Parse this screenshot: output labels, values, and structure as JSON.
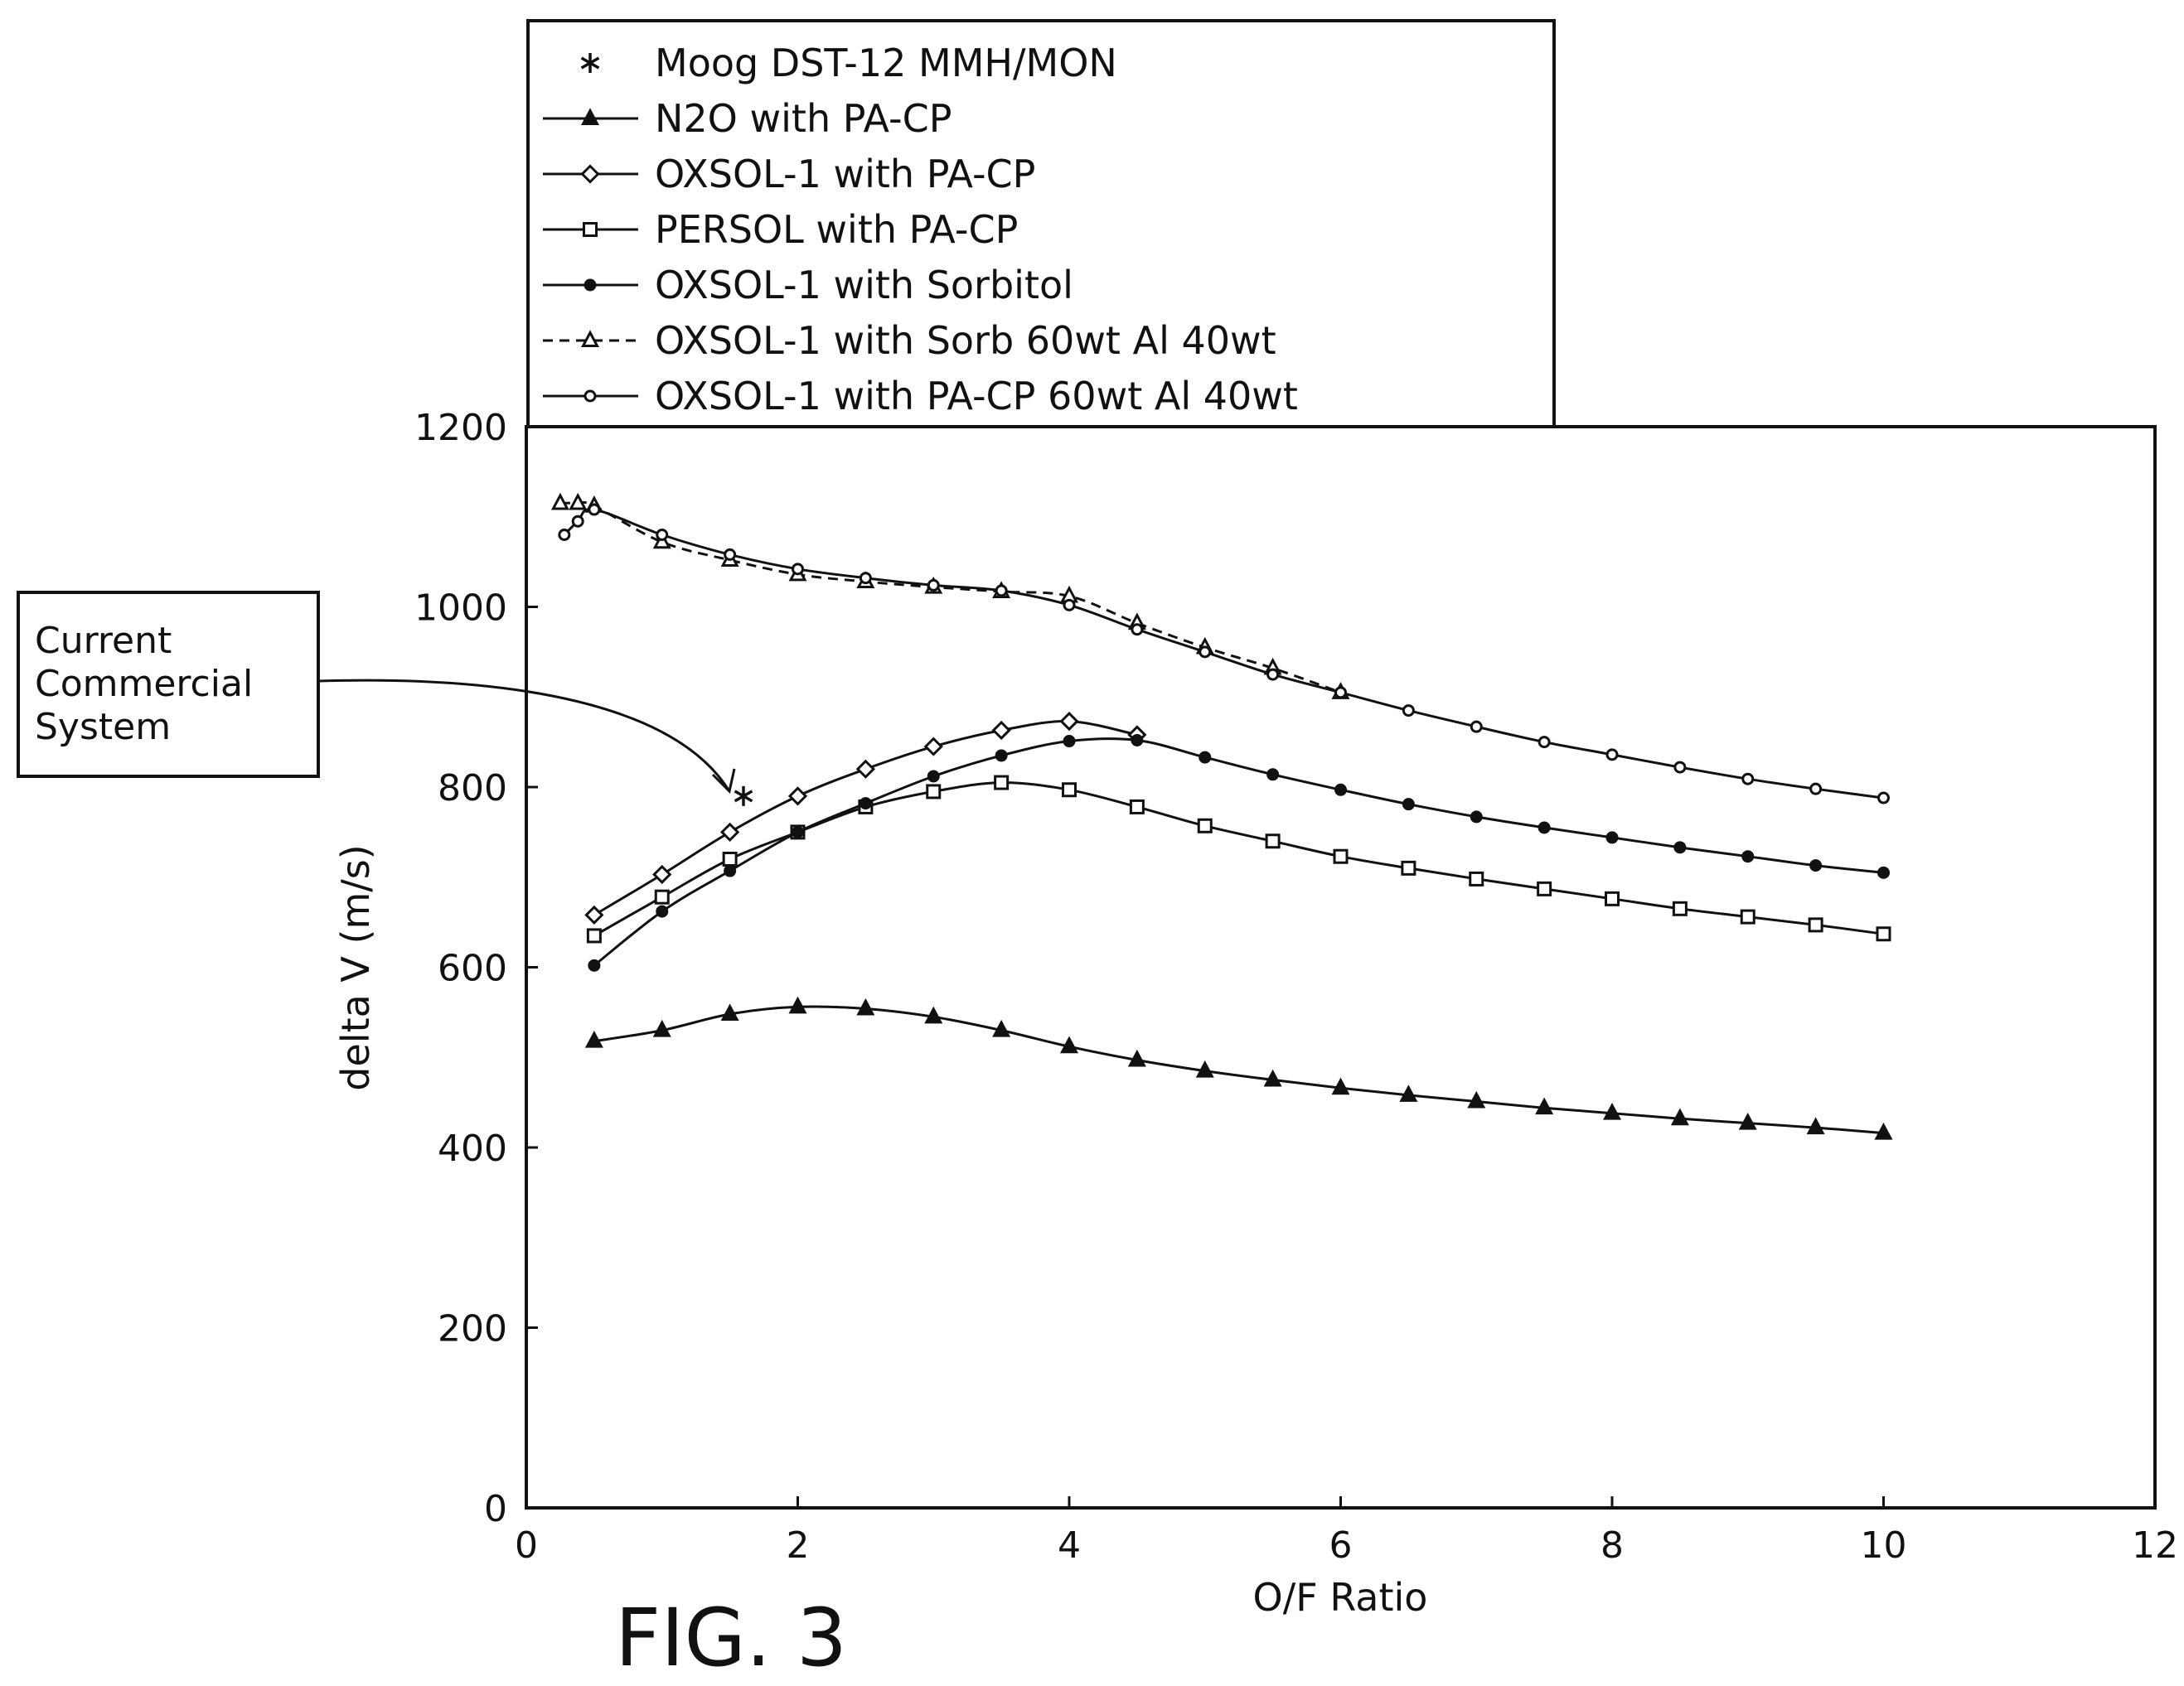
{
  "figure_label": "FIG. 3",
  "callout": {
    "lines": [
      "Current",
      "Commercial",
      "System"
    ]
  },
  "chart_data": {
    "type": "line",
    "xlabel": "O/F Ratio",
    "ylabel": "delta V (m/s)",
    "xlim": [
      0,
      12
    ],
    "ylim": [
      0,
      1200
    ],
    "xticks": [
      0,
      2,
      4,
      6,
      8,
      10,
      12
    ],
    "yticks": [
      0,
      200,
      400,
      600,
      800,
      1000,
      1200
    ],
    "grid": false,
    "legend_position": "top, above plot",
    "series": [
      {
        "name": "Moog DST-12 MMH/MON",
        "marker": "asterisk",
        "line": "none",
        "points": [
          [
            1.6,
            790
          ]
        ]
      },
      {
        "name": "N2O with PA-CP",
        "marker": "triangle-filled",
        "line": "solid",
        "points": [
          [
            0.5,
            518
          ],
          [
            1,
            530
          ],
          [
            1.5,
            548
          ],
          [
            2,
            556
          ],
          [
            2.5,
            554
          ],
          [
            3,
            545
          ],
          [
            3.5,
            530
          ],
          [
            4,
            512
          ],
          [
            4.5,
            497
          ],
          [
            5,
            485
          ],
          [
            5.5,
            475
          ],
          [
            6,
            466
          ],
          [
            6.5,
            458
          ],
          [
            7,
            451
          ],
          [
            7.5,
            444
          ],
          [
            8,
            438
          ],
          [
            8.5,
            432
          ],
          [
            9,
            427
          ],
          [
            9.5,
            422
          ],
          [
            10,
            416
          ]
        ]
      },
      {
        "name": "OXSOL-1 with PA-CP",
        "marker": "diamond-open",
        "line": "solid",
        "points": [
          [
            0.5,
            658
          ],
          [
            1,
            703
          ],
          [
            1.5,
            750
          ],
          [
            2,
            790
          ],
          [
            2.5,
            820
          ],
          [
            3,
            845
          ],
          [
            3.5,
            863
          ],
          [
            4,
            873
          ],
          [
            4.5,
            858
          ]
        ]
      },
      {
        "name": "PERSOL with PA-CP",
        "marker": "square-open",
        "line": "solid",
        "points": [
          [
            0.5,
            635
          ],
          [
            1,
            678
          ],
          [
            1.5,
            720
          ],
          [
            2,
            750
          ],
          [
            2.5,
            778
          ],
          [
            3,
            795
          ],
          [
            3.5,
            805
          ],
          [
            4,
            797
          ],
          [
            4.5,
            778
          ],
          [
            5,
            757
          ],
          [
            5.5,
            740
          ],
          [
            6,
            723
          ],
          [
            6.5,
            710
          ],
          [
            7,
            698
          ],
          [
            7.5,
            687
          ],
          [
            8,
            676
          ],
          [
            8.5,
            665
          ],
          [
            9,
            656
          ],
          [
            9.5,
            647
          ],
          [
            10,
            637
          ]
        ]
      },
      {
        "name": "OXSOL-1 with Sorbitol",
        "marker": "circle-filled",
        "line": "solid",
        "points": [
          [
            0.5,
            602
          ],
          [
            1,
            662
          ],
          [
            1.5,
            707
          ],
          [
            2,
            750
          ],
          [
            2.5,
            782
          ],
          [
            3,
            812
          ],
          [
            3.5,
            835
          ],
          [
            4,
            851
          ],
          [
            4.5,
            852
          ],
          [
            5,
            833
          ],
          [
            5.5,
            814
          ],
          [
            6,
            797
          ],
          [
            6.5,
            781
          ],
          [
            7,
            767
          ],
          [
            7.5,
            755
          ],
          [
            8,
            744
          ],
          [
            8.5,
            733
          ],
          [
            9,
            723
          ],
          [
            9.5,
            713
          ],
          [
            10,
            705
          ]
        ]
      },
      {
        "name": "OXSOL-1 with Sorb 60wt Al 40wt",
        "marker": "triangle-open",
        "line": "dashed",
        "points": [
          [
            0.25,
            1115
          ],
          [
            0.38,
            1115
          ],
          [
            0.5,
            1112
          ],
          [
            1,
            1072
          ],
          [
            1.5,
            1052
          ],
          [
            2,
            1036
          ],
          [
            2.5,
            1028
          ],
          [
            3,
            1022
          ],
          [
            3.5,
            1017
          ],
          [
            4,
            1012
          ],
          [
            4.5,
            982
          ],
          [
            5,
            955
          ],
          [
            5.5,
            932
          ],
          [
            6,
            905
          ]
        ]
      },
      {
        "name": "OXSOL-1 with PA-CP 60wt Al 40wt",
        "marker": "circle-open",
        "line": "solid",
        "points": [
          [
            0.28,
            1080
          ],
          [
            0.38,
            1095
          ],
          [
            0.5,
            1108
          ],
          [
            1,
            1080
          ],
          [
            1.5,
            1058
          ],
          [
            2,
            1042
          ],
          [
            2.5,
            1032
          ],
          [
            3,
            1024
          ],
          [
            3.5,
            1018
          ],
          [
            4,
            1002
          ],
          [
            4.5,
            975
          ],
          [
            5,
            950
          ],
          [
            5.5,
            925
          ],
          [
            6,
            905
          ],
          [
            6.5,
            885
          ],
          [
            7,
            867
          ],
          [
            7.5,
            850
          ],
          [
            8,
            836
          ],
          [
            8.5,
            822
          ],
          [
            9,
            809
          ],
          [
            9.5,
            798
          ],
          [
            10,
            788
          ]
        ]
      }
    ]
  }
}
